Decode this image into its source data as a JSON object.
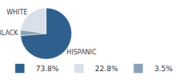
{
  "chart_data": {
    "type": "pie",
    "categories": [
      "HISPANIC",
      "WHITE",
      "BLACK"
    ],
    "values": [
      73.8,
      22.8,
      3.5
    ],
    "value_labels": [
      "73.8%",
      "22.8%",
      "3.5%"
    ],
    "colors": [
      "#2f5f8c",
      "#d8e0e9",
      "#8aa1b6"
    ],
    "legend": "bottom"
  }
}
